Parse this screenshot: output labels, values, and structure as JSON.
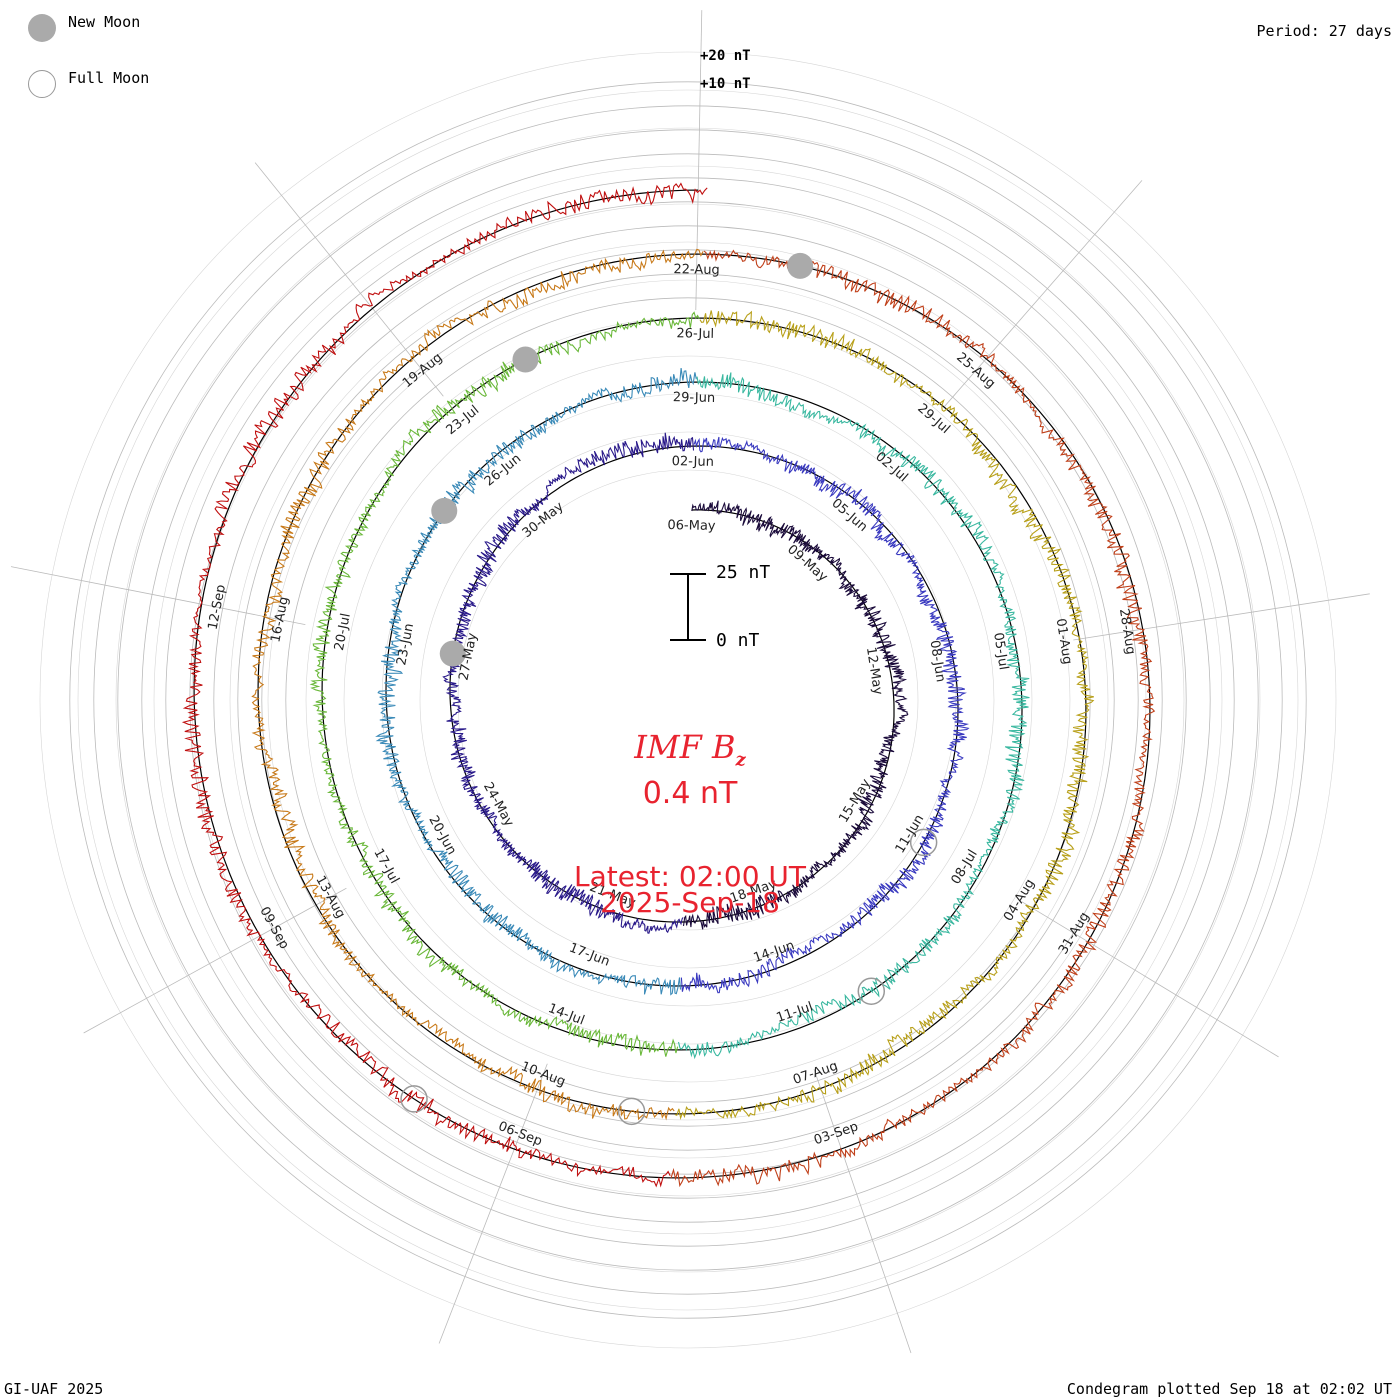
{
  "legend": {
    "new_moon": "New Moon",
    "full_moon": "Full Moon"
  },
  "period": "Period: 27 days",
  "footer_left": "GI-UAF 2025",
  "footer_right": "Condegram plotted Sep 18 at 02:02 UT",
  "ring_scale": {
    "plus20": "+20 nT",
    "plus10": "+10 nT"
  },
  "scale_bar": {
    "top": "25 nT",
    "bottom": "0 nT"
  },
  "center": {
    "title": "IMF B",
    "title_sub": "z",
    "value": "0.4 nT",
    "latest_line1": "Latest: 02:00 UT",
    "latest_line2": "2025-Sep-18"
  },
  "colors": {
    "center_text": "#e8232f",
    "grid": "#bbbbbb",
    "baseline": "#000000",
    "moon_new": "#aaaaaa",
    "moon_full": "#999999",
    "series": [
      "#1a0a3a",
      "#2a1a8a",
      "#3a3ac0",
      "#3a8ab8",
      "#3ab8a0",
      "#6ab83a",
      "#b8a01a",
      "#c87a1a",
      "#c0401a",
      "#c01010"
    ]
  },
  "chart_data": {
    "type": "condegram",
    "title": "IMF Bz",
    "units": "nT",
    "period_days": 27,
    "latest_value": 0.4,
    "latest_time": "2025-Sep-18 02:00 UT",
    "ring_gridlines_nT": [
      -30,
      -20,
      -10,
      0,
      10,
      20
    ],
    "spiral_turns": [
      {
        "label_dates": [
          "06-May",
          "09-May",
          "12-May",
          "15-May",
          "18-May"
        ],
        "approx_range_nT": [
          -15,
          15
        ]
      },
      {
        "label_dates": [
          "21-May",
          "24-May",
          "27-May",
          "30-May",
          "02-Jun",
          "05-Jun",
          "08-Jun",
          "11-Jun",
          "14-Jun"
        ],
        "approx_range_nT": [
          -20,
          20
        ]
      },
      {
        "label_dates": [
          "17-Jun",
          "20-Jun",
          "23-Jun",
          "26-Jun",
          "29-Jun",
          "02-Jul",
          "05-Jul",
          "08-Jul",
          "11-Jul"
        ],
        "approx_range_nT": [
          -20,
          15
        ]
      },
      {
        "label_dates": [
          "14-Jul",
          "17-Jul",
          "20-Jul",
          "23-Jul",
          "26-Jul",
          "29-Jul",
          "01-Aug",
          "04-Aug",
          "07-Aug"
        ],
        "approx_range_nT": [
          -20,
          15
        ]
      },
      {
        "label_dates": [
          "10-Aug",
          "13-Aug",
          "16-Aug",
          "19-Aug",
          "22-Aug",
          "25-Aug",
          "28-Aug",
          "31-Aug",
          "03-Sep"
        ],
        "approx_range_nT": [
          -20,
          15
        ]
      },
      {
        "label_dates": [
          "06-Sep",
          "09-Sep",
          "12-Sep"
        ],
        "approx_range_nT": [
          -15,
          20
        ]
      }
    ],
    "date_labels": [
      "06-May",
      "09-May",
      "12-May",
      "15-May",
      "18-May",
      "21-May",
      "24-May",
      "27-May",
      "30-May",
      "02-Jun",
      "05-Jun",
      "08-Jun",
      "11-Jun",
      "14-Jun",
      "17-Jun",
      "20-Jun",
      "23-Jun",
      "26-Jun",
      "29-Jun",
      "02-Jul",
      "05-Jul",
      "08-Jul",
      "11-Jul",
      "14-Jul",
      "17-Jul",
      "20-Jul",
      "23-Jul",
      "26-Jul",
      "29-Jul",
      "01-Aug",
      "04-Aug",
      "07-Aug",
      "10-Aug",
      "13-Aug",
      "16-Aug",
      "19-Aug",
      "22-Aug",
      "25-Aug",
      "28-Aug",
      "31-Aug",
      "03-Sep",
      "06-Sep",
      "09-Sep",
      "12-Sep"
    ],
    "moon_phases": [
      {
        "type": "new",
        "date": "27-May"
      },
      {
        "type": "new",
        "date": "25-Jun"
      },
      {
        "type": "new",
        "date": "24-Jul"
      },
      {
        "type": "new",
        "date": "23-Aug"
      },
      {
        "type": "full",
        "date": "11-Jun"
      },
      {
        "type": "full",
        "date": "10-Jul"
      },
      {
        "type": "full",
        "date": "09-Aug"
      },
      {
        "type": "full",
        "date": "07-Sep"
      }
    ]
  }
}
